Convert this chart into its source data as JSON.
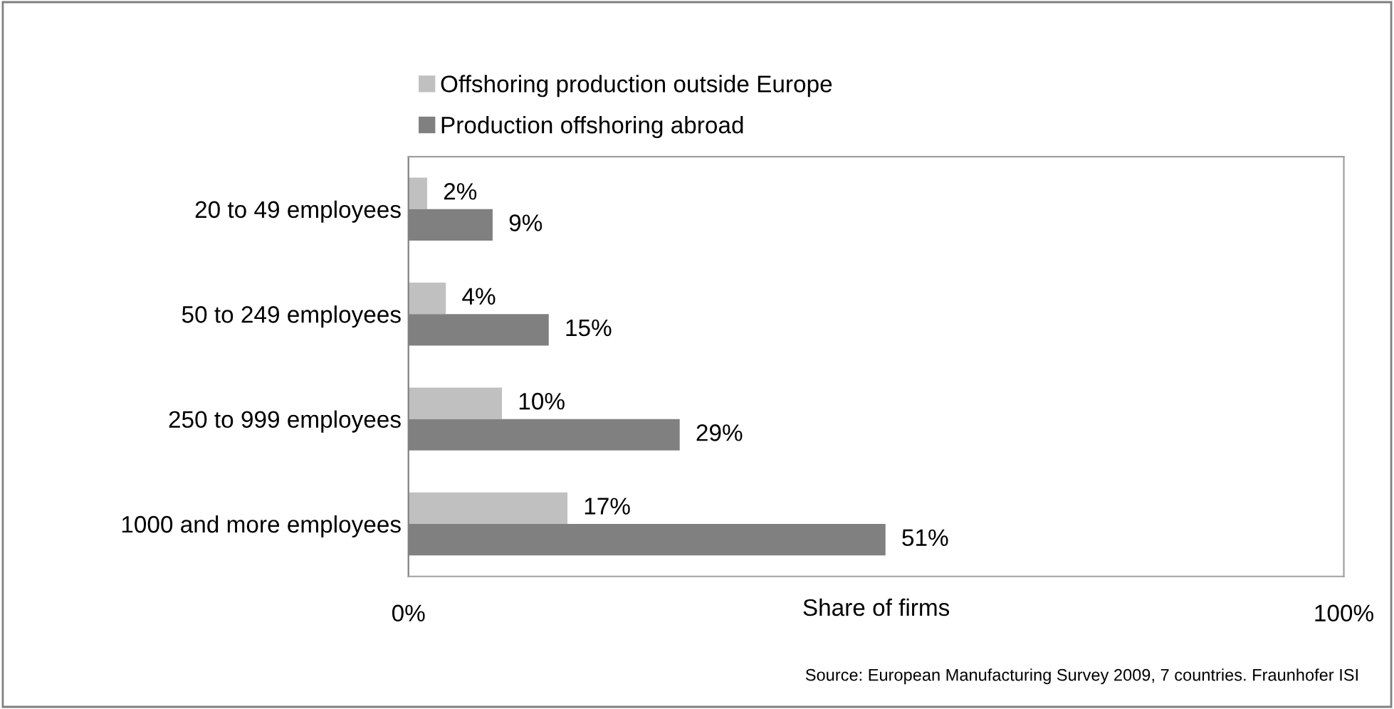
{
  "chart_data": {
    "type": "bar",
    "orientation": "horizontal",
    "categories": [
      "20 to 49 employees",
      "50 to 249 employees",
      "250 to 999 employees",
      "1000 and more employees"
    ],
    "series": [
      {
        "name": "Offshoring production outside Europe",
        "color": "#c0c0c0",
        "values": [
          2,
          4,
          10,
          17
        ],
        "value_labels": [
          "2%",
          "4%",
          "10%",
          "17%"
        ]
      },
      {
        "name": "Production offshoring abroad",
        "color": "#808080",
        "values": [
          9,
          15,
          29,
          51
        ],
        "value_labels": [
          "9%",
          "15%",
          "29%",
          "51%"
        ]
      }
    ],
    "xlim": [
      0,
      100
    ],
    "xticks": [
      {
        "value": 0,
        "label": "0%"
      },
      {
        "value": 100,
        "label": "100%"
      }
    ],
    "xlabel": "Share of firms",
    "legend": "top left",
    "grid": false,
    "annotations": [
      "Source: European Manufacturing Survey 2009, 7 countries. Fraunhofer ISI"
    ]
  }
}
